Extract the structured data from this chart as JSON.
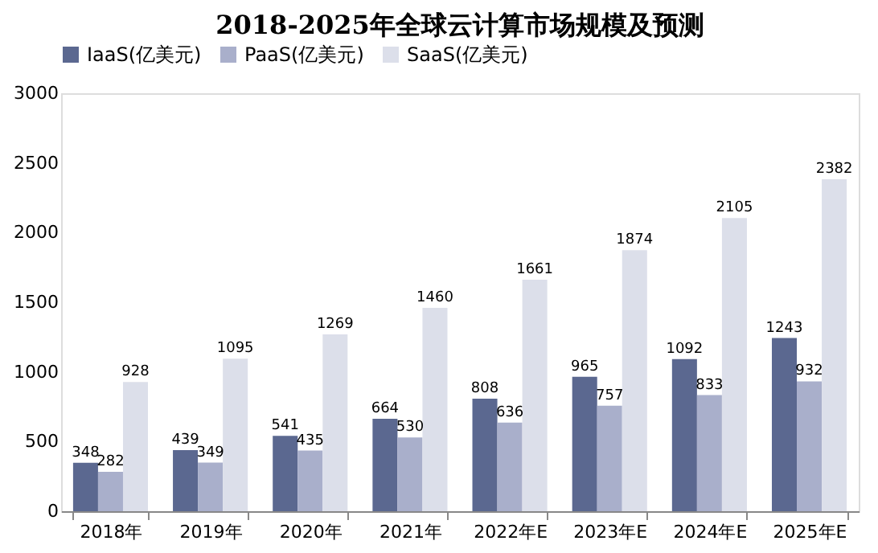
{
  "chart_data": {
    "type": "bar",
    "title": "2018-2025年全球云计算市场规模及预测",
    "categories": [
      "2018年",
      "2019年",
      "2020年",
      "2021年",
      "2022年E",
      "2023年E",
      "2024年E",
      "2025年E"
    ],
    "series": [
      {
        "name": "IaaS(亿美元)",
        "color": "#5b6890",
        "values": [
          348,
          439,
          541,
          664,
          808,
          965,
          1092,
          1243
        ]
      },
      {
        "name": "PaaS(亿美元)",
        "color": "#a9afcb",
        "values": [
          282,
          349,
          435,
          530,
          636,
          757,
          833,
          932
        ]
      },
      {
        "name": "SaaS(亿美元)",
        "color": "#dcdfea",
        "values": [
          928,
          1095,
          1269,
          1460,
          1661,
          1874,
          2105,
          2382
        ]
      }
    ],
    "ylim": [
      0,
      3000
    ],
    "yticks": [
      0,
      500,
      1000,
      1500,
      2000,
      2500,
      3000
    ],
    "grid": false,
    "legend": "top",
    "data_labels": true
  }
}
